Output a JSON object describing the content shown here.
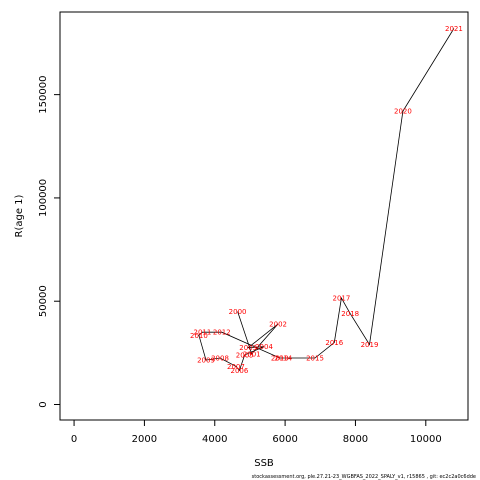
{
  "chart_data": {
    "type": "line",
    "xlabel": "SSB",
    "ylabel": "R(age 1)",
    "xlim": [
      -400,
      11200
    ],
    "ylim": [
      -7500,
      190000
    ],
    "x_ticks": [
      0,
      2000,
      4000,
      6000,
      8000,
      10000
    ],
    "y_ticks": [
      0,
      50000,
      100000,
      150000
    ],
    "line_color": "#000000",
    "label_color": "#ff0000",
    "points": [
      {
        "label": "2000",
        "x": 4650,
        "y": 45000
      },
      {
        "label": "2001",
        "x": 5050,
        "y": 24500
      },
      {
        "label": "2002",
        "x": 5800,
        "y": 39000
      },
      {
        "label": "2003",
        "x": 4950,
        "y": 27500
      },
      {
        "label": "2004",
        "x": 5400,
        "y": 28000
      },
      {
        "label": "2005",
        "x": 4850,
        "y": 24000
      },
      {
        "label": "2006",
        "x": 4700,
        "y": 16500
      },
      {
        "label": "2007",
        "x": 4600,
        "y": 18500
      },
      {
        "label": "2008",
        "x": 4150,
        "y": 22500
      },
      {
        "label": "2009",
        "x": 3750,
        "y": 21500
      },
      {
        "label": "2010",
        "x": 3550,
        "y": 33500
      },
      {
        "label": "2011",
        "x": 3650,
        "y": 35000
      },
      {
        "label": "2012",
        "x": 4200,
        "y": 35000
      },
      {
        "label": "2013",
        "x": 5850,
        "y": 22500
      },
      {
        "label": "2014",
        "x": 5950,
        "y": 22500
      },
      {
        "label": "2015",
        "x": 6850,
        "y": 22500
      },
      {
        "label": "2016",
        "x": 7400,
        "y": 30000
      },
      {
        "label": "2017",
        "x": 7600,
        "y": 51500
      },
      {
        "label": "2018",
        "x": 7850,
        "y": 44000
      },
      {
        "label": "2019",
        "x": 8400,
        "y": 29000
      },
      {
        "label": "2020",
        "x": 9350,
        "y": 142000
      },
      {
        "label": "2021",
        "x": 10800,
        "y": 182000
      }
    ],
    "footer": "stockassessment.org, ple.27.21-23_WGBFAS_2022_SPALY_v1, r15865 , git: ec2c2a0c6dde"
  }
}
